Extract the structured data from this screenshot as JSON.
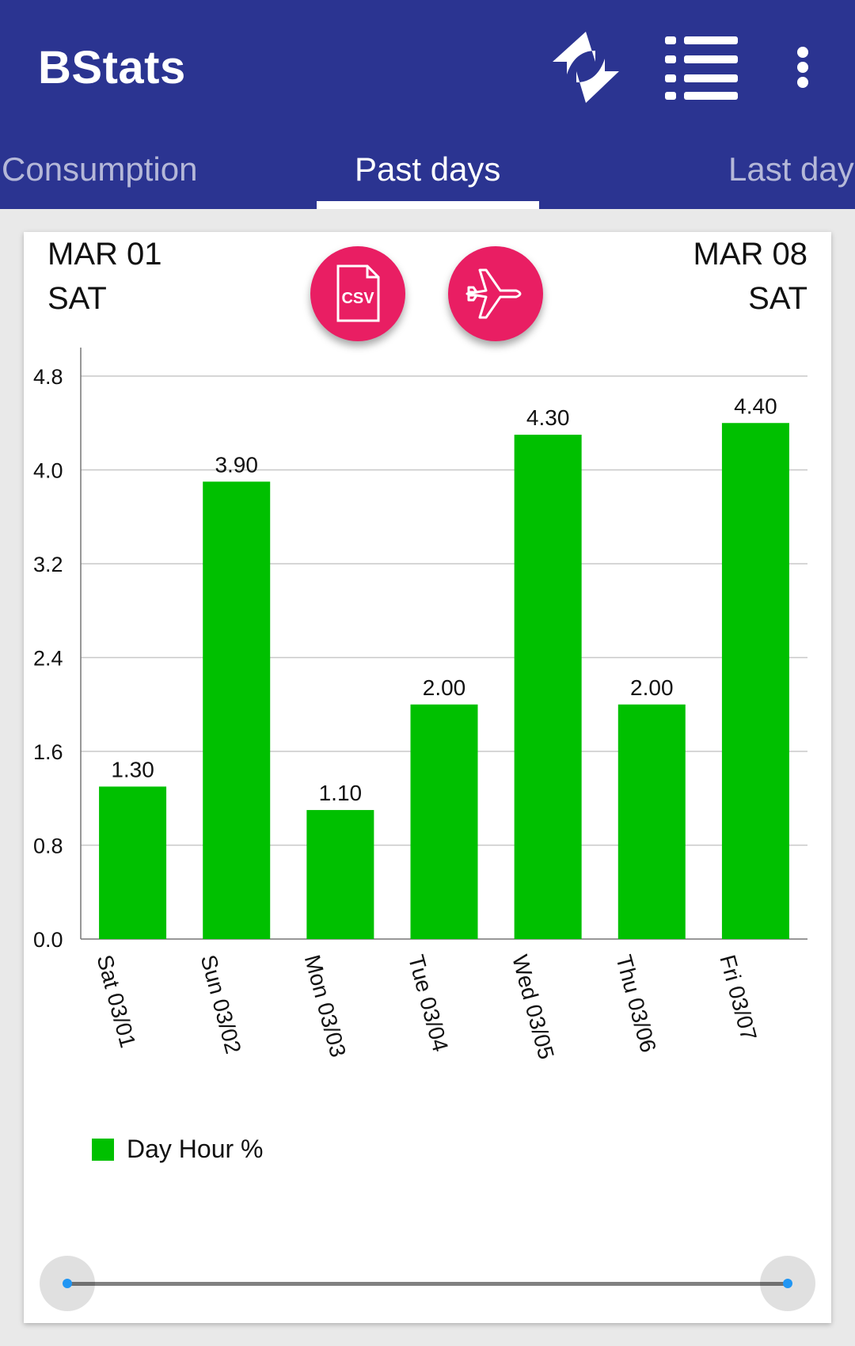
{
  "app": {
    "title": "BStats"
  },
  "colors": {
    "appbar": "#2b3491",
    "accent": "#e91e63",
    "bar": "#00c000"
  },
  "toolbar": {
    "icons": [
      "sync-icon",
      "list-icon",
      "overflow-menu-icon"
    ]
  },
  "tabs": [
    {
      "label": "Consumption",
      "active": false
    },
    {
      "label": "Past days",
      "active": true
    },
    {
      "label": "Last day",
      "active": false
    }
  ],
  "range": {
    "start_date": "MAR 01",
    "start_day": "SAT",
    "end_date": "MAR 08",
    "end_day": "SAT"
  },
  "actions": {
    "csv_icon": "csv-file-icon",
    "csv_text": "CSV",
    "airplane_icon": "airplane-icon"
  },
  "chart_data": {
    "type": "bar",
    "categories": [
      "Sat 03/01",
      "Sun 03/02",
      "Mon 03/03",
      "Tue 03/04",
      "Wed 03/05",
      "Thu 03/06",
      "Fri 03/07"
    ],
    "series": [
      {
        "name": "Day Hour %",
        "values": [
          1.3,
          3.9,
          1.1,
          2.0,
          4.3,
          2.0,
          4.4
        ],
        "labels": [
          "1.30",
          "3.90",
          "1.10",
          "2.00",
          "4.30",
          "2.00",
          "4.40"
        ]
      }
    ],
    "yticks": [
      "0.0",
      "0.8",
      "1.6",
      "2.4",
      "3.2",
      "4.0",
      "4.8"
    ],
    "ylim": [
      0,
      4.8
    ],
    "grid": true,
    "legend": "bottom-left"
  },
  "slider": {
    "start": 0,
    "end": 1
  }
}
